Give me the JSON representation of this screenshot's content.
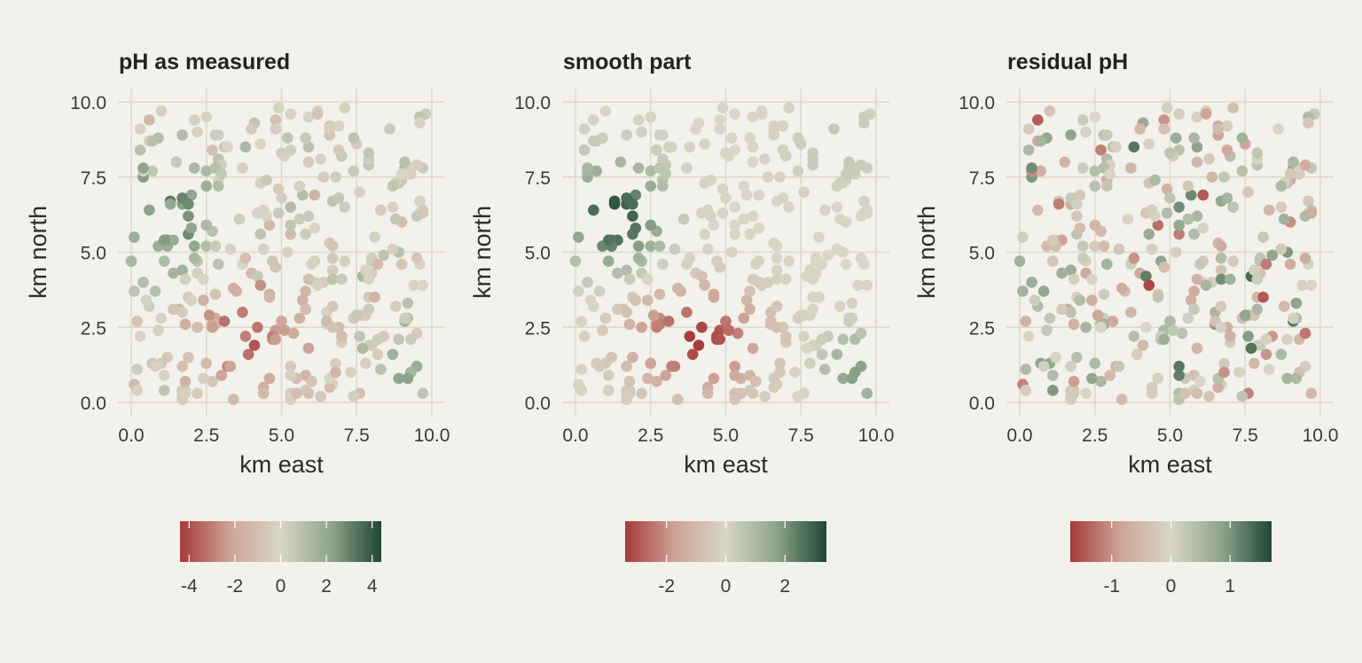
{
  "chart_data": [
    {
      "type": "scatter",
      "title": "pH as measured",
      "xlabel": "km east",
      "ylabel": "km north",
      "xlim": [
        -0.3,
        10.4
      ],
      "ylim": [
        -0.3,
        10.4
      ],
      "xticks": [
        0,
        2.5,
        5,
        7.5,
        10
      ],
      "yticks": [
        0,
        2.5,
        5,
        7.5,
        10
      ],
      "xtick_labels": [
        "0.0",
        "2.5",
        "5.0",
        "7.5",
        "10.0"
      ],
      "ytick_labels": [
        "0.0",
        "2.5",
        "5.0",
        "7.5",
        "10.0"
      ],
      "grid": true,
      "colorbar": {
        "placement": "bottom",
        "range": [
          -4.4,
          4.4
        ],
        "ticks": [
          -4,
          -2,
          0,
          2,
          4
        ],
        "tick_labels": [
          "-4",
          "-2",
          "0",
          "2",
          "4"
        ],
        "colors": [
          "#a63a3a",
          "#cda497",
          "#d8d6c6",
          "#8ea48c",
          "#1f4732"
        ]
      }
    },
    {
      "type": "scatter",
      "title": "smooth part",
      "xlabel": "km east",
      "ylabel": "km north",
      "xlim": [
        -0.3,
        10.4
      ],
      "ylim": [
        -0.3,
        10.4
      ],
      "xticks": [
        0,
        2.5,
        5,
        7.5,
        10
      ],
      "yticks": [
        0,
        2.5,
        5,
        7.5,
        10
      ],
      "xtick_labels": [
        "0.0",
        "2.5",
        "5.0",
        "7.5",
        "10.0"
      ],
      "ytick_labels": [
        "0.0",
        "2.5",
        "5.0",
        "7.5",
        "10.0"
      ],
      "grid": true,
      "colorbar": {
        "placement": "bottom",
        "range": [
          -3.4,
          3.4
        ],
        "ticks": [
          -2,
          0,
          2
        ],
        "tick_labels": [
          "-2",
          "0",
          "2"
        ],
        "colors": [
          "#a63a3a",
          "#cda497",
          "#d8d6c6",
          "#8ea48c",
          "#1f4732"
        ]
      }
    },
    {
      "type": "scatter",
      "title": "residual pH",
      "xlabel": "km east",
      "ylabel": "km north",
      "xlim": [
        -0.3,
        10.4
      ],
      "ylim": [
        -0.3,
        10.4
      ],
      "xticks": [
        0,
        2.5,
        5,
        7.5,
        10
      ],
      "yticks": [
        0,
        2.5,
        5,
        7.5,
        10
      ],
      "xtick_labels": [
        "0.0",
        "2.5",
        "5.0",
        "7.5",
        "10.0"
      ],
      "ytick_labels": [
        "0.0",
        "2.5",
        "5.0",
        "7.5",
        "10.0"
      ],
      "grid": true,
      "colorbar": {
        "placement": "bottom",
        "range": [
          -1.7,
          1.7
        ],
        "ticks": [
          -1,
          0,
          1
        ],
        "tick_labels": [
          "-1",
          "0",
          "1"
        ],
        "colors": [
          "#a63a3a",
          "#cda497",
          "#d8d6c6",
          "#8ea48c",
          "#1f4732"
        ]
      }
    }
  ]
}
